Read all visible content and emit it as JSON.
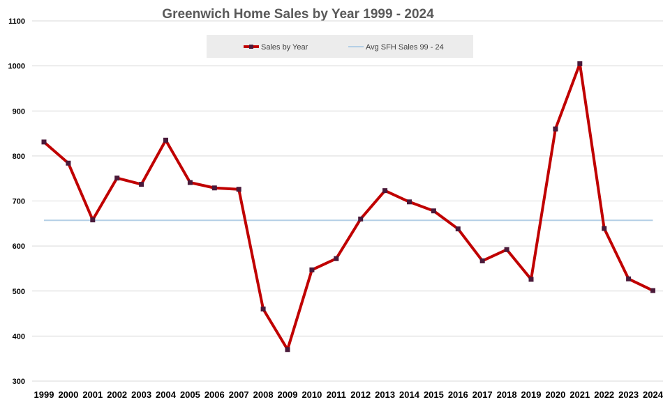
{
  "chart_data": {
    "type": "line",
    "title": "Greenwich Home Sales by Year 1999 - 2024",
    "xlabel": "",
    "ylabel": "",
    "ylim": [
      300,
      1100
    ],
    "yticks": [
      300,
      400,
      500,
      600,
      700,
      800,
      900,
      1000,
      1100
    ],
    "categories": [
      "1999",
      "2000",
      "2001",
      "2002",
      "2003",
      "2004",
      "2005",
      "2006",
      "2007",
      "2008",
      "2009",
      "2010",
      "2011",
      "2012",
      "2013",
      "2014",
      "2015",
      "2016",
      "2017",
      "2018",
      "2019",
      "2020",
      "2021",
      "2022",
      "2023",
      "2024"
    ],
    "grid": true,
    "legend_position": "top-center",
    "series": [
      {
        "name": "Sales by Year",
        "color": "#c00000",
        "marker_color": "#4a1a3a",
        "values": [
          831,
          784,
          658,
          751,
          737,
          835,
          741,
          729,
          726,
          460,
          370,
          547,
          572,
          660,
          723,
          698,
          678,
          638,
          567,
          592,
          526,
          860,
          1005,
          639,
          527,
          501
        ]
      },
      {
        "name": "Avg SFH Sales 99 - 24",
        "color": "#b4cfe6",
        "values": [
          657,
          657,
          657,
          657,
          657,
          657,
          657,
          657,
          657,
          657,
          657,
          657,
          657,
          657,
          657,
          657,
          657,
          657,
          657,
          657,
          657,
          657,
          657,
          657,
          657,
          657
        ]
      }
    ]
  }
}
